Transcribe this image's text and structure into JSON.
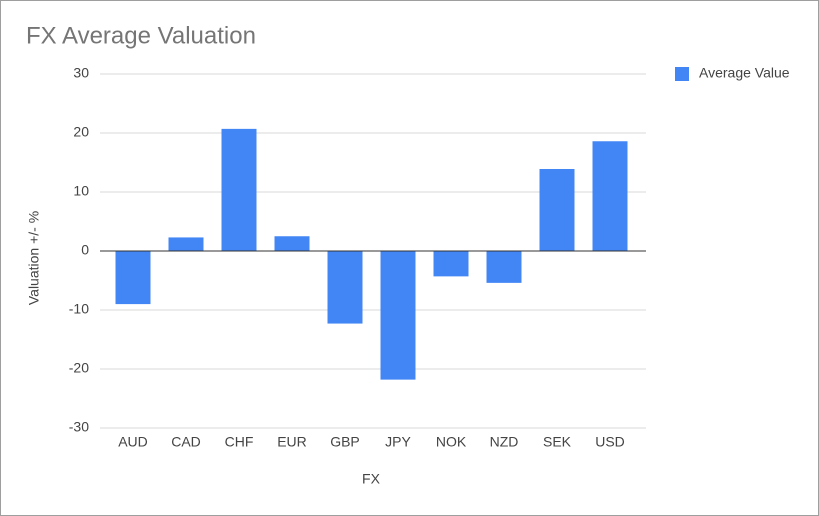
{
  "chart_data": {
    "type": "bar",
    "title": "FX Average Valuation",
    "x_label": "FX",
    "y_label": "Valuation +/- %",
    "categories": [
      "AUD",
      "CAD",
      "CHF",
      "EUR",
      "GBP",
      "JPY",
      "NOK",
      "NZD",
      "SEK",
      "USD"
    ],
    "series": [
      {
        "name": "Average Value",
        "color": "#4285f4",
        "values": [
          -9.0,
          2.3,
          20.7,
          2.5,
          -12.3,
          -21.8,
          -4.3,
          -5.4,
          13.9,
          18.6
        ]
      }
    ],
    "ylim": [
      -30,
      30
    ],
    "yticks": [
      -30,
      -20,
      -10,
      0,
      10,
      20,
      30
    ],
    "grid": true,
    "legend": "right"
  }
}
